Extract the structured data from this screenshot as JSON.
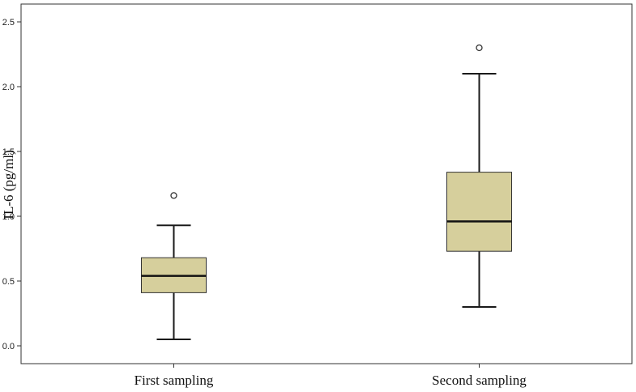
{
  "chart_data": {
    "type": "box",
    "title": "",
    "xlabel": "",
    "ylabel": "IL-6 (pg/ml)",
    "ylim": [
      -0.13,
      2.62
    ],
    "yticks": [
      0.0,
      0.5,
      1.0,
      1.5,
      2.0,
      2.5
    ],
    "ytick_labels": [
      "0.0",
      "0.5",
      "1.0",
      "1.5",
      "2.0",
      "2.5"
    ],
    "categories": [
      "First sampling",
      "Second sampling"
    ],
    "boxes": [
      {
        "category": "First sampling",
        "whisker_low": 0.05,
        "q1": 0.41,
        "median": 0.54,
        "q3": 0.68,
        "whisker_high": 0.93,
        "outliers": [
          1.16
        ]
      },
      {
        "category": "Second sampling",
        "whisker_low": 0.3,
        "q1": 0.73,
        "median": 0.96,
        "q3": 1.34,
        "whisker_high": 2.1,
        "outliers": [
          2.3
        ]
      }
    ],
    "grid": false,
    "legend": "none",
    "box_color": "#d6cf9c",
    "line_color": "#1a1a1a"
  }
}
